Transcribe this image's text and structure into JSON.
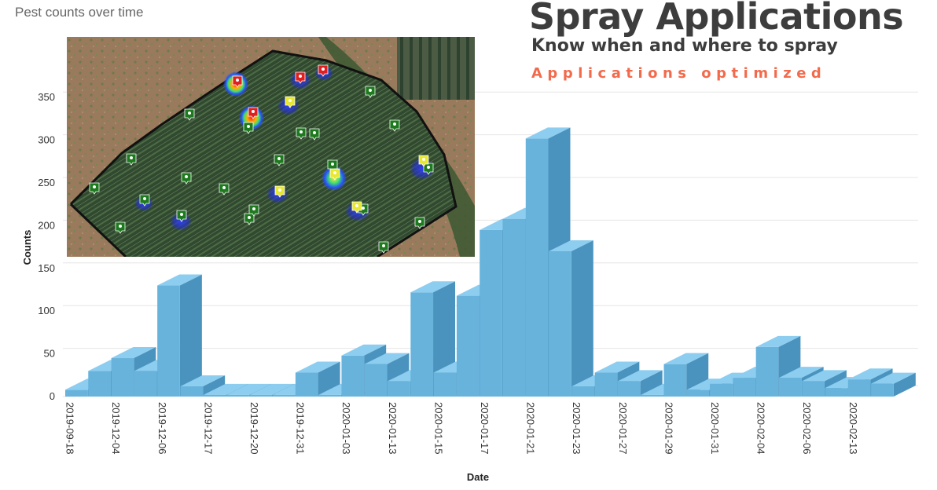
{
  "chart_data": {
    "type": "bar",
    "title": "Pest counts over time",
    "xlabel": "Date",
    "ylabel": "Counts",
    "ylim": [
      0,
      350
    ],
    "yticks": [
      0,
      50,
      100,
      150,
      200,
      250,
      300,
      350
    ],
    "grid": true,
    "legend": "none",
    "tick_labels": [
      "2019-09-18",
      "2019-12-04",
      "2019-12-06",
      "2019-12-17",
      "2019-12-20",
      "2019-12-31",
      "2020-01-03",
      "2020-01-13",
      "2020-01-15",
      "2020-01-17",
      "2020-01-21",
      "2020-01-23",
      "2020-01-27",
      "2020-01-29",
      "2020-01-31",
      "2020-02-04",
      "2020-02-06",
      "2020-02-13"
    ],
    "values": [
      8,
      30,
      45,
      30,
      130,
      12,
      2,
      2,
      2,
      2,
      28,
      2,
      48,
      38,
      18,
      122,
      28,
      118,
      195,
      208,
      302,
      170,
      12,
      28,
      18,
      2,
      38,
      8,
      15,
      22,
      58,
      22,
      18,
      10,
      20,
      15
    ]
  },
  "promo": {
    "title": "Spray Applications",
    "subtitle": "Know when and where to spray",
    "tagline": "Applications optimized"
  },
  "colors": {
    "bar_front": "#67b3dc",
    "bar_side": "#4a93be",
    "bar_top": "#8ccdf0",
    "grid": "#e6e6e6",
    "promo_text": "#3d3d3d",
    "tagline": "#f26a4b"
  },
  "map": {
    "description_icons": [
      "pest-trap-icon",
      "heatmap-hotspot"
    ]
  }
}
